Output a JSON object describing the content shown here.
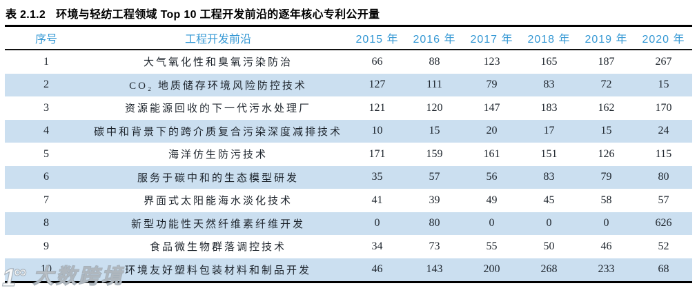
{
  "caption": {
    "label": "表 2.1.2",
    "text": "环境与轻纺工程领域 Top 10 工程开发前沿的逐年核心专利公开量"
  },
  "table": {
    "columns": [
      "序号",
      "工程开发前沿",
      "2015 年",
      "2016 年",
      "2017 年",
      "2018 年",
      "2019 年",
      "2020 年"
    ],
    "rows": [
      {
        "no": "1",
        "frontier": "大气氧化性和臭氧污染防治",
        "values": [
          "66",
          "88",
          "123",
          "165",
          "187",
          "267"
        ]
      },
      {
        "no": "2",
        "frontier": "CO₂ 地质储存环境风险防控技术",
        "values": [
          "127",
          "111",
          "79",
          "83",
          "72",
          "15"
        ]
      },
      {
        "no": "3",
        "frontier": "资源能源回收的下一代污水处理厂",
        "values": [
          "121",
          "120",
          "147",
          "183",
          "162",
          "170"
        ]
      },
      {
        "no": "4",
        "frontier": "碳中和背景下的跨介质复合污染深度减排技术",
        "values": [
          "10",
          "15",
          "20",
          "17",
          "15",
          "24"
        ]
      },
      {
        "no": "5",
        "frontier": "海洋仿生防污技术",
        "values": [
          "171",
          "159",
          "161",
          "151",
          "126",
          "115"
        ]
      },
      {
        "no": "6",
        "frontier": "服务于碳中和的生态模型研发",
        "values": [
          "35",
          "57",
          "56",
          "83",
          "79",
          "80"
        ]
      },
      {
        "no": "7",
        "frontier": "界面式太阳能海水淡化技术",
        "values": [
          "41",
          "39",
          "49",
          "45",
          "58",
          "57"
        ]
      },
      {
        "no": "8",
        "frontier": "新型功能性天然纤维素纤维开发",
        "values": [
          "0",
          "80",
          "0",
          "0",
          "0",
          "626"
        ]
      },
      {
        "no": "9",
        "frontier": "食品微生物群落调控技术",
        "values": [
          "34",
          "73",
          "55",
          "50",
          "46",
          "52"
        ]
      },
      {
        "no": "10",
        "frontier": "环境友好塑料包装材料和制品开发",
        "values": [
          "46",
          "143",
          "200",
          "268",
          "233",
          "68"
        ]
      }
    ]
  },
  "watermark": {
    "logo_one": "1",
    "logo_infinity": "∞",
    "text": "大数跨境"
  },
  "colors": {
    "header_text": "#3598d4",
    "stripe_blue": "#cbdff0",
    "rule_black": "#000000"
  }
}
